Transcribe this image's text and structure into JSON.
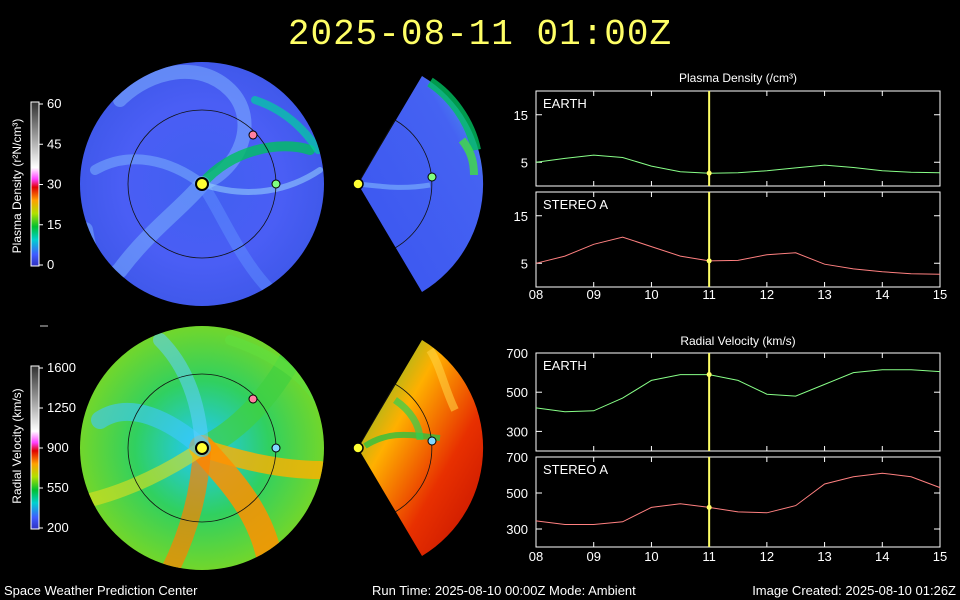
{
  "title": "2025-08-11  01:00Z",
  "footer": {
    "left": "Space Weather Prediction Center",
    "center": "Run Time: 2025-08-10 00:00Z  Mode: Ambient",
    "right": "Image Created: 2025-08-10 01:26Z"
  },
  "colorbars": {
    "density": {
      "label": "Plasma Density (r²N/cm³)",
      "ticks": [
        "60",
        "45",
        "30",
        "15",
        "0"
      ]
    },
    "velocity": {
      "label": "Radial Velocity (km/s)",
      "ticks": [
        "1600",
        "1250",
        "900",
        "550",
        "200"
      ]
    }
  },
  "chart_data": [
    {
      "type": "line",
      "title": "Plasma Density (/cm³)",
      "x": [
        8,
        8.5,
        9,
        9.5,
        10,
        10.5,
        11,
        11.5,
        12,
        12.5,
        13,
        13.5,
        14,
        14.5,
        15
      ],
      "xlim": [
        8,
        15
      ],
      "xticks": [
        "08",
        "09",
        "10",
        "11",
        "12",
        "13",
        "14",
        "15"
      ],
      "current_time": 11.0,
      "panels": [
        {
          "name": "EARTH",
          "color": "#88ff88",
          "ylim": [
            0,
            20
          ],
          "yticks": [
            "15",
            "5"
          ],
          "values": [
            5,
            5.8,
            6.5,
            6,
            4.2,
            3,
            2.7,
            2.8,
            3.2,
            3.8,
            4.4,
            3.9,
            3.2,
            2.9,
            2.8
          ]
        },
        {
          "name": "STEREO A",
          "color": "#ff8080",
          "ylim": [
            0,
            20
          ],
          "yticks": [
            "15",
            "5"
          ],
          "values": [
            5,
            6.5,
            9,
            10.5,
            8.5,
            6.5,
            5.5,
            5.6,
            6.8,
            7.2,
            4.8,
            3.8,
            3.2,
            2.8,
            2.7
          ]
        }
      ]
    },
    {
      "type": "line",
      "title": "Radial Velocity (km/s)",
      "x": [
        8,
        8.5,
        9,
        9.5,
        10,
        10.5,
        11,
        11.5,
        12,
        12.5,
        13,
        13.5,
        14,
        14.5,
        15
      ],
      "xlim": [
        8,
        15
      ],
      "xticks": [
        "08",
        "09",
        "10",
        "11",
        "12",
        "13",
        "14",
        "15"
      ],
      "current_time": 11.0,
      "panels": [
        {
          "name": "EARTH",
          "color": "#88ff88",
          "ylim": [
            200,
            700
          ],
          "yticks": [
            "700",
            "500",
            "300"
          ],
          "values": [
            420,
            400,
            405,
            470,
            560,
            590,
            590,
            560,
            490,
            480,
            540,
            600,
            615,
            615,
            605
          ]
        },
        {
          "name": "STEREO A",
          "color": "#ff8080",
          "ylim": [
            200,
            700
          ],
          "yticks": [
            "700",
            "500",
            "300"
          ],
          "values": [
            345,
            325,
            325,
            340,
            420,
            440,
            420,
            395,
            390,
            430,
            550,
            590,
            610,
            590,
            530
          ]
        }
      ]
    }
  ]
}
